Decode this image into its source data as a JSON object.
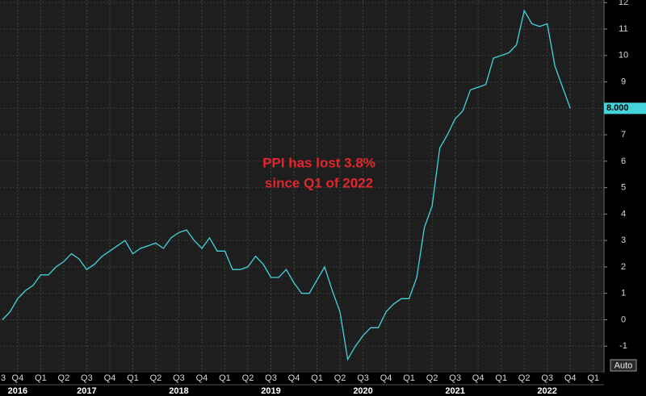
{
  "chart_data": {
    "type": "line",
    "annotation": [
      "PPI has lost 3.8%",
      "since Q1 of 2022"
    ],
    "x": [
      1,
      2,
      3,
      4,
      5,
      6,
      7,
      8,
      9,
      10,
      11,
      12,
      13,
      14,
      15,
      16,
      17,
      18,
      19,
      20,
      21,
      22,
      23,
      24,
      25,
      26,
      27,
      28,
      29,
      30,
      31,
      32,
      33,
      34,
      35,
      36,
      37,
      38,
      39,
      40,
      41,
      42,
      43,
      44,
      45,
      46,
      47,
      48,
      49,
      50,
      51,
      52,
      53,
      54,
      55,
      56,
      57,
      58,
      59,
      60,
      61,
      62,
      63,
      64,
      65,
      66,
      67,
      68,
      69,
      70,
      71,
      72,
      73,
      74,
      75
    ],
    "series": [
      {
        "color": "#45d3dc",
        "values": [
          0,
          0.3,
          0.8,
          1.1,
          1.3,
          1.7,
          1.7,
          2.0,
          2.2,
          2.5,
          2.3,
          1.9,
          2.1,
          2.4,
          2.6,
          2.8,
          3.0,
          2.5,
          2.7,
          2.8,
          2.9,
          2.7,
          3.1,
          3.3,
          3.4,
          3.0,
          2.7,
          3.1,
          2.6,
          2.6,
          1.9,
          1.9,
          2.0,
          2.4,
          2.1,
          1.6,
          1.6,
          1.9,
          1.4,
          1.0,
          1.0,
          1.5,
          2.0,
          1.1,
          0.3,
          -1.5,
          -1.0,
          -0.6,
          -0.3,
          -0.3,
          0.3,
          0.6,
          0.8,
          0.8,
          1.6,
          3.5,
          4.3,
          6.5,
          7.0,
          7.6,
          7.9,
          8.7,
          8.8,
          8.9,
          9.9,
          10.0,
          10.1,
          10.4,
          11.7,
          11.2,
          11.1,
          11.2,
          9.6,
          8.8,
          8.0
        ]
      }
    ],
    "last_label": {
      "value": 8.0,
      "label": "8.000"
    },
    "xlim": [
      0.7,
      79.4
    ],
    "xticks": [
      {
        "value": 0,
        "label": "3"
      },
      {
        "value": 3,
        "label": "Q4"
      },
      {
        "value": 6,
        "label": "Q1"
      },
      {
        "value": 9,
        "label": "Q2"
      },
      {
        "value": 12,
        "label": "Q3"
      },
      {
        "value": 15,
        "label": "Q4"
      },
      {
        "value": 18,
        "label": "Q1"
      },
      {
        "value": 21,
        "label": "Q2"
      },
      {
        "value": 24,
        "label": "Q3"
      },
      {
        "value": 27,
        "label": "Q4"
      },
      {
        "value": 30,
        "label": "Q1"
      },
      {
        "value": 33,
        "label": "Q2"
      },
      {
        "value": 36,
        "label": "Q3"
      },
      {
        "value": 39,
        "label": "Q4"
      },
      {
        "value": 42,
        "label": "Q1"
      },
      {
        "value": 45,
        "label": "Q2"
      },
      {
        "value": 48,
        "label": "Q3"
      },
      {
        "value": 51,
        "label": "Q4"
      },
      {
        "value": 54,
        "label": "Q1"
      },
      {
        "value": 57,
        "label": "Q2"
      },
      {
        "value": 60,
        "label": "Q3"
      },
      {
        "value": 63,
        "label": "Q4"
      },
      {
        "value": 66,
        "label": "Q1"
      },
      {
        "value": 69,
        "label": "Q2"
      },
      {
        "value": 72,
        "label": "Q3"
      },
      {
        "value": 75,
        "label": "Q4"
      },
      {
        "value": 78,
        "label": "Q1"
      }
    ],
    "year_ticks": [
      {
        "value": 3,
        "label": "2016"
      },
      {
        "value": 12,
        "label": "2017"
      },
      {
        "value": 24,
        "label": "2018"
      },
      {
        "value": 36,
        "label": "2019"
      },
      {
        "value": 48,
        "label": "2020"
      },
      {
        "value": 60,
        "label": "2021"
      },
      {
        "value": 72,
        "label": "2022"
      }
    ],
    "ylim": [
      -2,
      12.1
    ],
    "yticks": [
      -1,
      0,
      1,
      2,
      3,
      4,
      5,
      6,
      7,
      8,
      9,
      10,
      11,
      12
    ],
    "grid": true,
    "auto_button": "Auto"
  }
}
